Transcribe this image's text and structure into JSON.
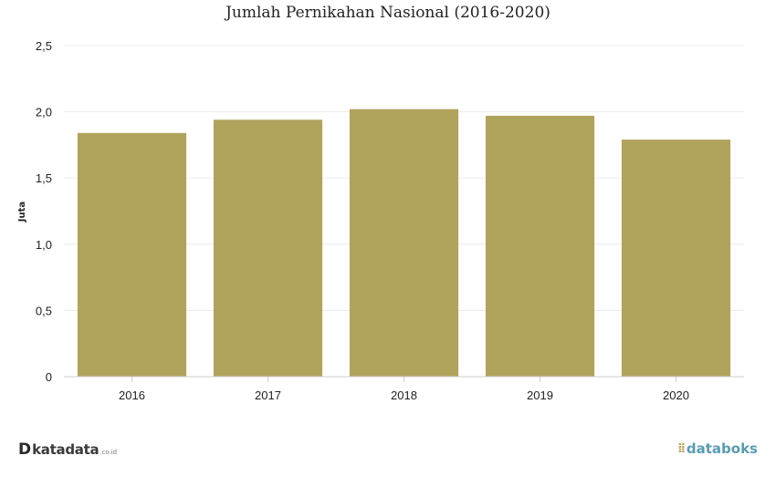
{
  "chart_data": {
    "type": "bar",
    "title": "Jumlah Pernikahan Nasional (2016-2020)",
    "ylabel": "Juta",
    "xlabel": "",
    "categories": [
      "2016",
      "2017",
      "2018",
      "2019",
      "2020"
    ],
    "values": [
      1.84,
      1.94,
      2.02,
      1.97,
      1.79
    ],
    "ylim": [
      0,
      2.5
    ],
    "yticks": [
      "0",
      "0,5",
      "1,0",
      "1,5",
      "2,0",
      "2,5"
    ],
    "ytick_values": [
      0,
      0.5,
      1.0,
      1.5,
      2.0,
      2.5
    ],
    "grid": true,
    "bar_color": "#b0a35c"
  },
  "branding": {
    "left_mark": "D",
    "left_name": "katadata",
    "left_suffix": ".co.id",
    "right_icon": "databoks-icon",
    "right_name": "databoks"
  }
}
